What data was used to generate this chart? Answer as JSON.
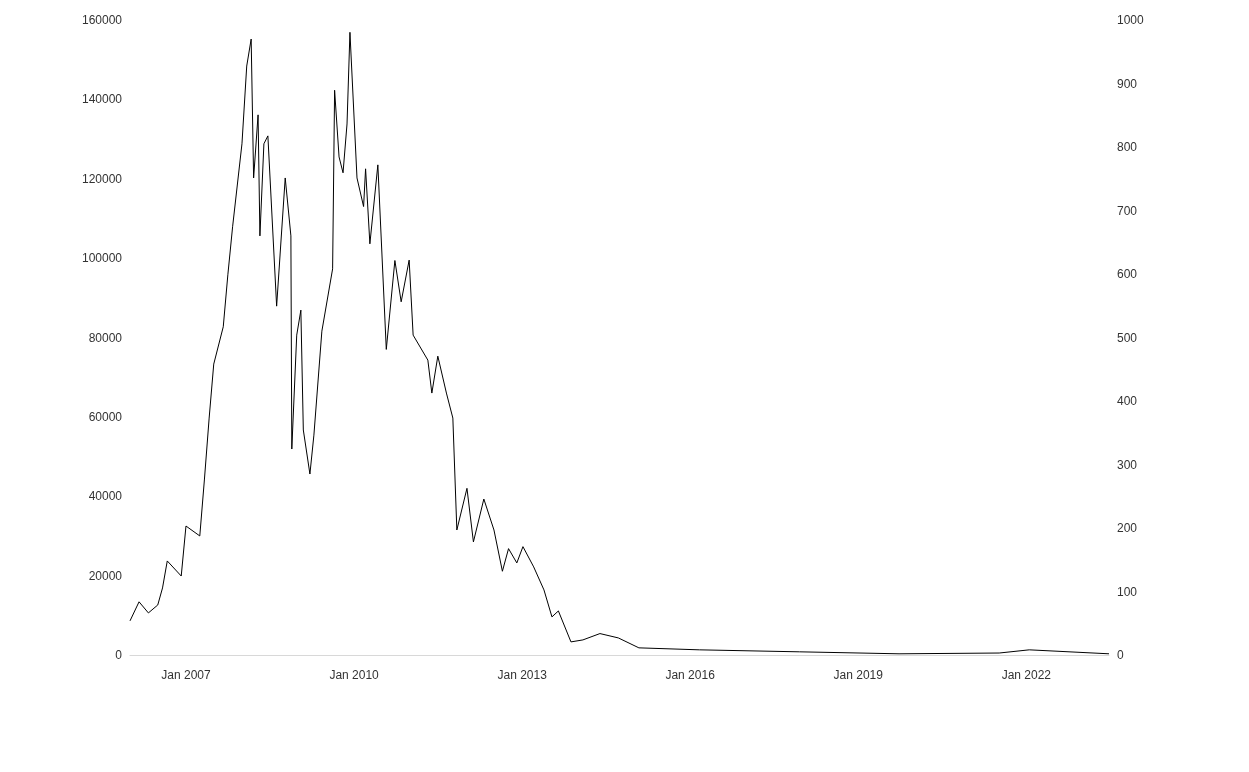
{
  "chart_data": {
    "type": "line",
    "x": [
      "2006-01",
      "2006-03",
      "2006-05",
      "2006-07",
      "2006-08",
      "2006-09",
      "2006-12",
      "2007-01",
      "2007-04",
      "2007-05",
      "2007-06",
      "2007-07",
      "2007-09",
      "2007-10",
      "2007-11",
      "2008-01",
      "2008-02",
      "2008-03",
      "2008-03-17",
      "2008-04-15",
      "2008-04-27",
      "2008-05-23",
      "2008-06-18",
      "2008-08-14",
      "2008-10-09",
      "2008-11-15",
      "2008-11-21",
      "2008-12-23",
      "2009-01-19",
      "2009-02-04",
      "2009-03-19",
      "2009-04-14",
      "2009-06-05",
      "2009-08-14",
      "2009-08-27",
      "2009-09-25",
      "2009-10-21",
      "2009-11-16",
      "2009-12-05",
      "2010-01-20",
      "2010-03-04",
      "2010-03-17",
      "2010-04-14",
      "2010-06-05",
      "2010-07-30",
      "2010-09-24",
      "2010-11-04",
      "2010-12-26",
      "2011-01-21",
      "2011-04-27",
      "2011-05-23",
      "2011-07-01",
      "2011-08-26",
      "2011-10-07",
      "2011-11-02",
      "2012-01-07",
      "2012-02-18",
      "2012-04-26",
      "2012-07-01",
      "2012-08-25",
      "2012-10-04",
      "2012-11-27",
      "2013-01-06",
      "2013-03-17",
      "2013-05-23",
      "2013-07-14",
      "2013-08-25",
      "2013-11-15",
      "2014-02-01",
      "2014-05-23",
      "2014-09-20",
      "2015-02-01",
      "2016-03-01",
      "2017-12-13",
      "2019-09-24",
      "2021-07-08",
      "2022-01-20",
      "2023-06-24"
    ],
    "series": [
      {
        "color": "#000000",
        "values": [
          8600,
          13400,
          10600,
          12600,
          16900,
          23700,
          19900,
          32500,
          30000,
          44100,
          59700,
          73300,
          82700,
          95800,
          107900,
          128800,
          148400,
          155200,
          120200,
          136100,
          105600,
          128800,
          130800,
          87900,
          120200,
          105600,
          51900,
          80600,
          86900,
          56700,
          45600,
          55400,
          81600,
          97300,
          142300,
          125500,
          121500,
          133800,
          156900,
          120200,
          113000,
          122500,
          103600,
          123500,
          77000,
          99400,
          89000,
          99500,
          80600,
          74300,
          66000,
          75300,
          66000,
          59700,
          31500,
          42000,
          28500,
          39300,
          31500,
          21100,
          26800,
          23200,
          27300,
          22200,
          16400,
          9600,
          11100,
          3300,
          3800,
          5400,
          4300,
          1800,
          1300,
          800,
          300,
          500,
          1300,
          300
        ]
      }
    ],
    "xticks": [
      {
        "value": "2007-01-01",
        "label": "Jan 2007"
      },
      {
        "value": "2010-01-01",
        "label": "Jan 2010"
      },
      {
        "value": "2013-01-01",
        "label": "Jan 2013"
      },
      {
        "value": "2016-01-01",
        "label": "Jan 2016"
      },
      {
        "value": "2019-01-01",
        "label": "Jan 2019"
      },
      {
        "value": "2022-01-01",
        "label": "Jan 2022"
      }
    ],
    "xlim": [
      "2006-01",
      "2023-06-24"
    ],
    "ylim": [
      0,
      160000
    ],
    "yticks": [
      0,
      20000,
      40000,
      60000,
      80000,
      100000,
      120000,
      140000,
      160000
    ],
    "y2lim": [
      0,
      1000
    ],
    "y2ticks": [
      0,
      100,
      200,
      300,
      400,
      500,
      600,
      700,
      800,
      900,
      1000
    ],
    "grid": false,
    "marker": "none",
    "line_style": "solid"
  }
}
